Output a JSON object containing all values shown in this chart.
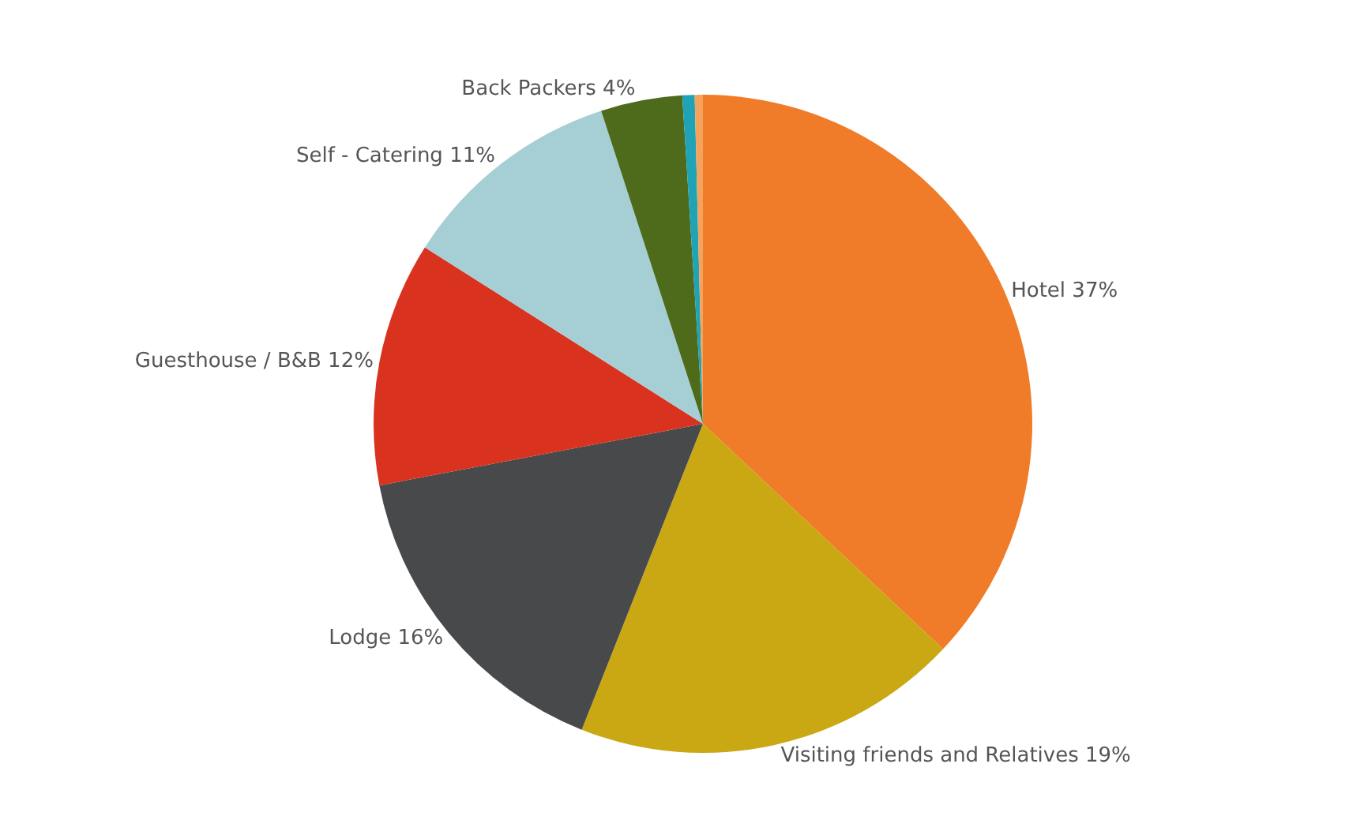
{
  "chart_data": {
    "type": "pie",
    "categories": [
      "Hotel",
      "Visiting friends and Relatives",
      "Lodge",
      "Guesthouse / B&B",
      "Self - Catering",
      "Back Packers",
      null,
      null
    ],
    "values": [
      37,
      19,
      16,
      12,
      11,
      4,
      0.6,
      0.4
    ],
    "value_labels": [
      "37%",
      "19%",
      "16%",
      "12%",
      "11%",
      "4%",
      null,
      null
    ],
    "colors": [
      "#f07b28",
      "#c9a814",
      "#48494b",
      "#d9321f",
      "#a5cfd4",
      "#4d6b1b",
      "#1fa3b5",
      "#f5a25d"
    ],
    "legend": false
  }
}
